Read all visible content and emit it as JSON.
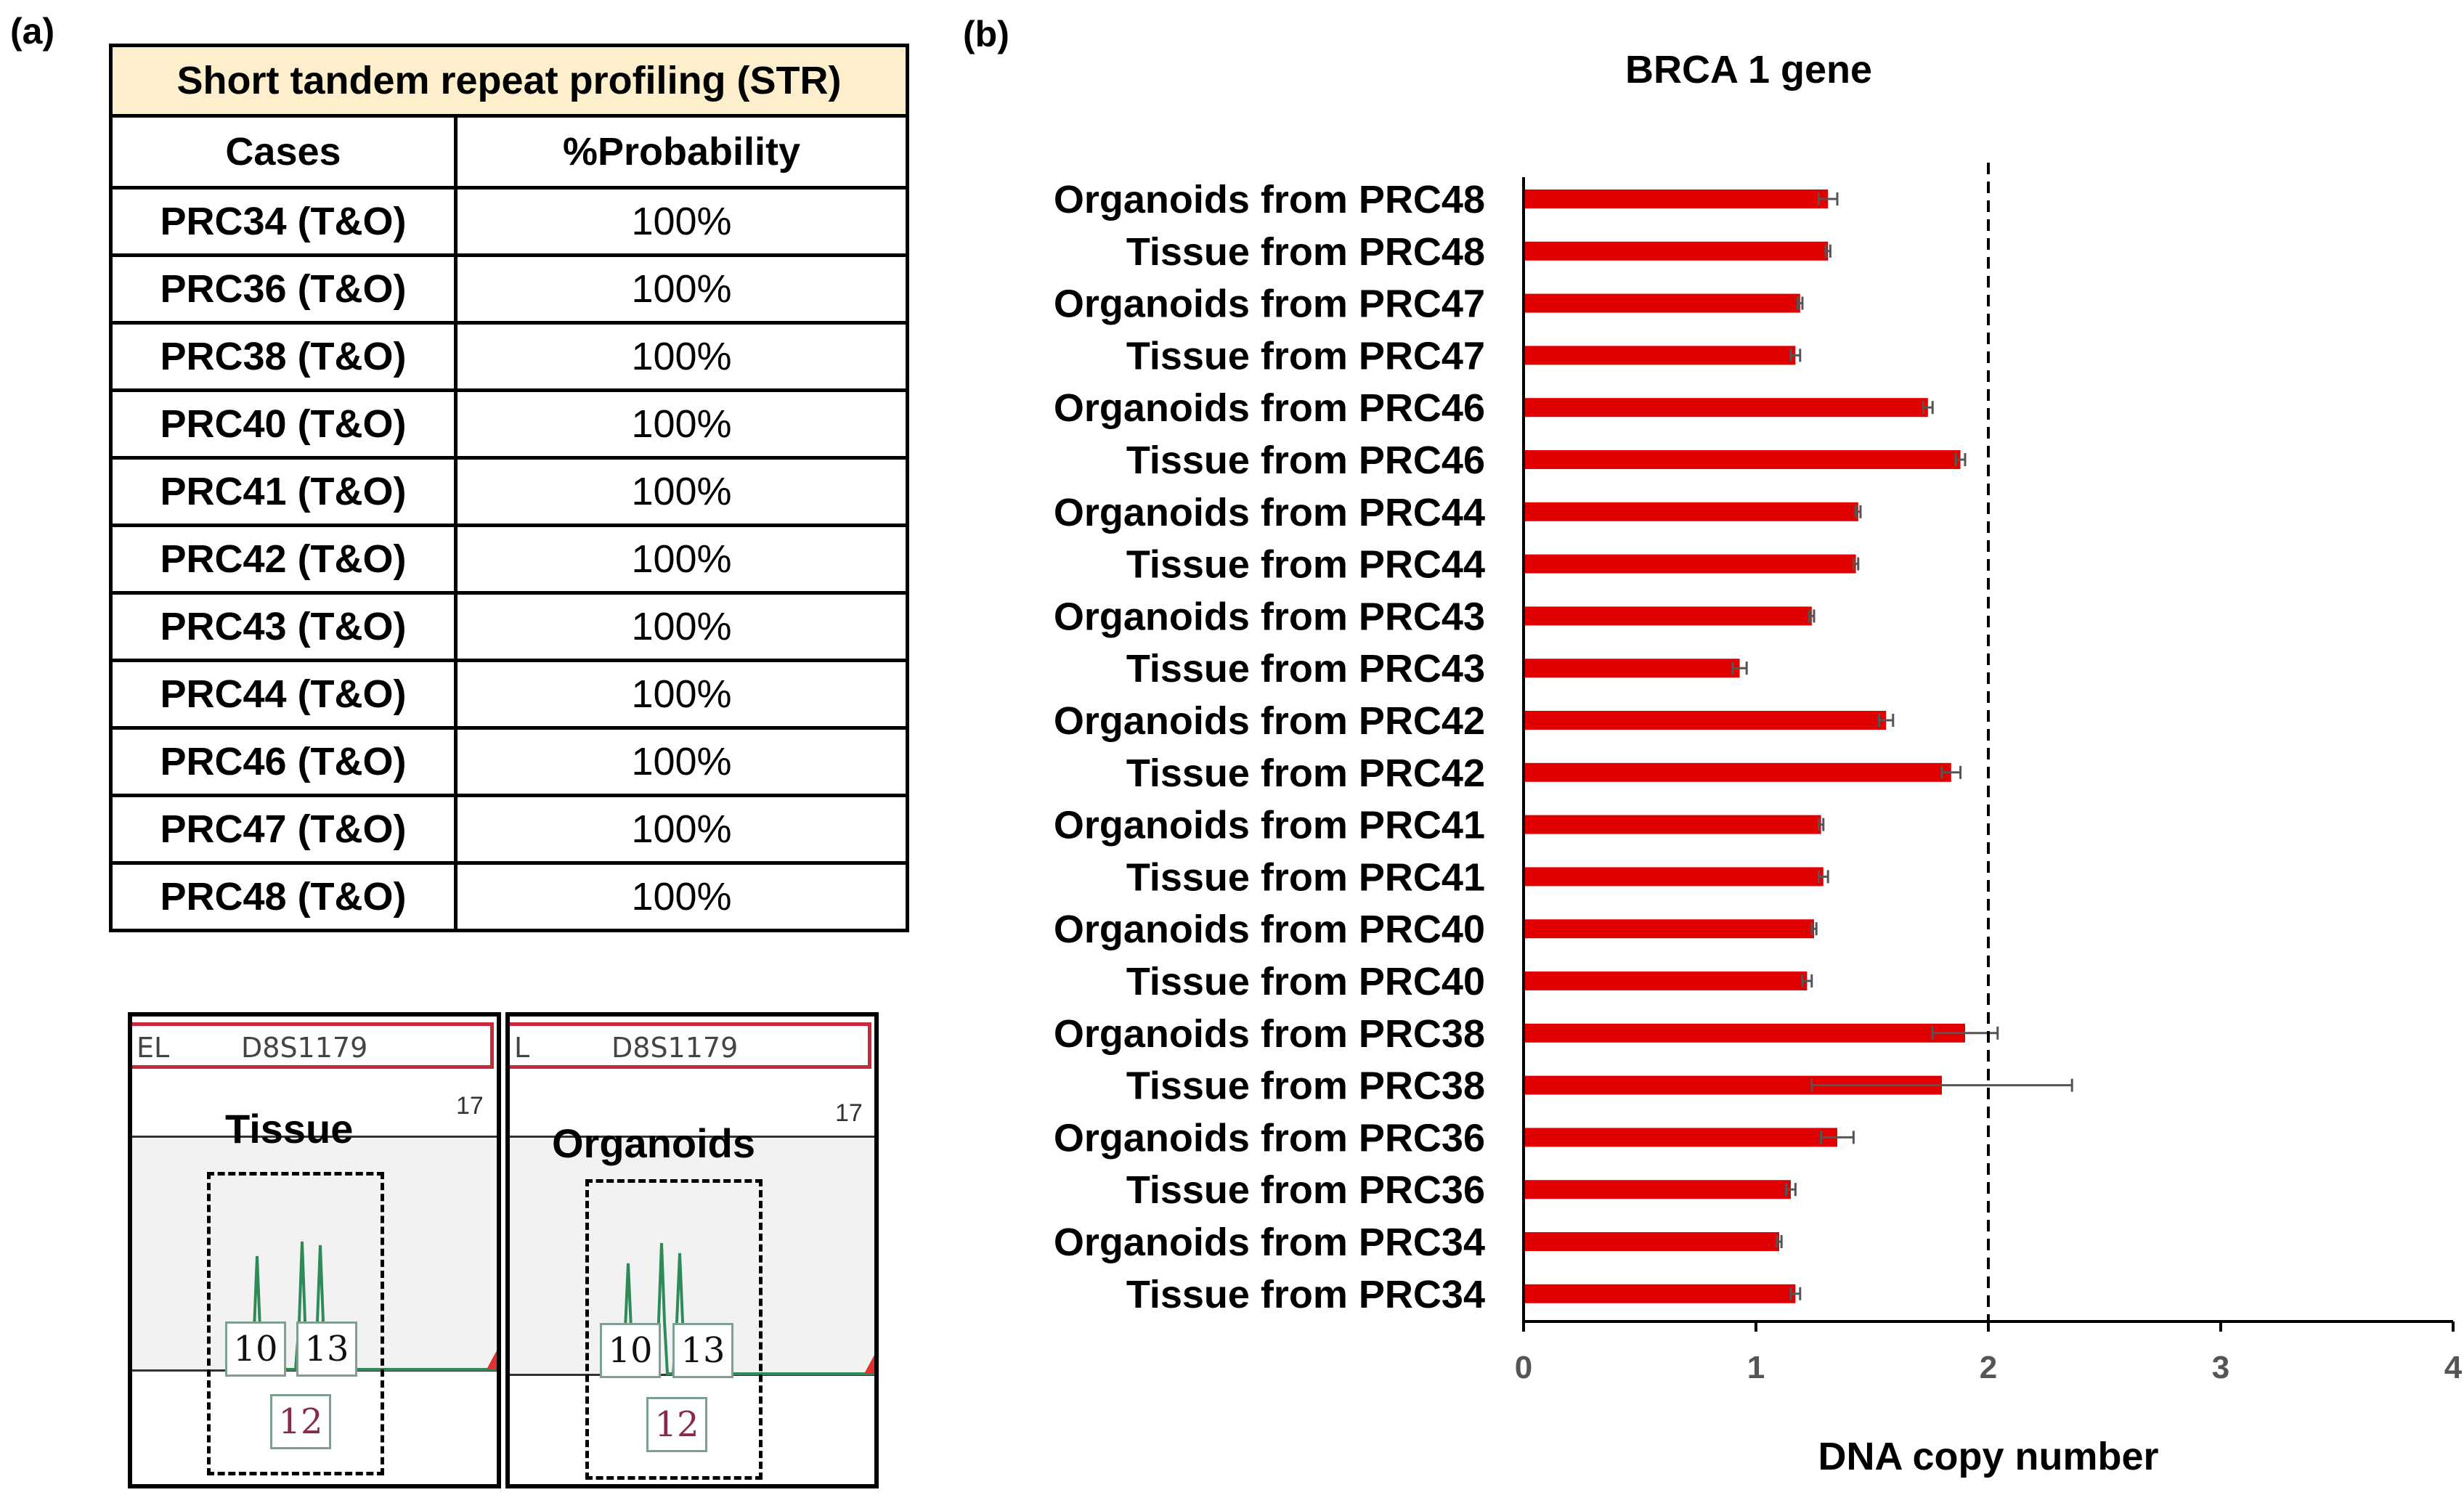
{
  "panel_a": {
    "label": "(a)",
    "table": {
      "title": "Short tandem repeat profiling (STR)",
      "headers": [
        "Cases",
        "%Probability"
      ],
      "rows": [
        [
          "PRC34 (T&O)",
          "100%"
        ],
        [
          "PRC36 (T&O)",
          "100%"
        ],
        [
          "PRC38 (T&O)",
          "100%"
        ],
        [
          "PRC40 (T&O)",
          "100%"
        ],
        [
          "PRC41 (T&O)",
          "100%"
        ],
        [
          "PRC42 (T&O)",
          "100%"
        ],
        [
          "PRC43 (T&O)",
          "100%"
        ],
        [
          "PRC44 (T&O)",
          "100%"
        ],
        [
          "PRC46 (T&O)",
          "100%"
        ],
        [
          "PRC47 (T&O)",
          "100%"
        ],
        [
          "PRC48 (T&O)",
          "100%"
        ]
      ]
    },
    "electropherograms": [
      {
        "title": "Tissue",
        "marker_prefix": "EL",
        "marker": "D8S1179",
        "peak_label": "17",
        "alleles": [
          "10",
          "13",
          "12"
        ]
      },
      {
        "title": "Organoids",
        "marker_prefix": "L",
        "marker": "D8S1179",
        "peak_label": "17",
        "alleles": [
          "10",
          "13",
          "12"
        ]
      }
    ]
  },
  "panel_b": {
    "label": "(b)"
  },
  "colors": {
    "bar": "#e00000",
    "title_fill": "#fdefcb"
  },
  "chart_data": {
    "type": "bar",
    "orientation": "horizontal",
    "title": "BRCA 1 gene",
    "xlabel": "DNA copy number",
    "ylabel": "",
    "xlim": [
      0,
      4
    ],
    "xticks": [
      "0",
      "1",
      "2",
      "3",
      "4"
    ],
    "reference_line": 2,
    "grid": false,
    "categories": [
      "Organoids from PRC48",
      "Tissue from PRC48",
      "Organoids from PRC47",
      "Tissue from PRC47",
      "Organoids from PRC46",
      "Tissue from PRC46",
      "Organoids from PRC44",
      "Tissue from PRC44",
      "Organoids from PRC43",
      "Tissue from PRC43",
      "Organoids from PRC42",
      "Tissue from PRC42",
      "Organoids from PRC41",
      "Tissue from PRC41",
      "Organoids from PRC40",
      "Tissue from PRC40",
      "Organoids from PRC38",
      "Tissue from PRC38",
      "Organoids from PRC36",
      "Tissue from PRC36",
      "Organoids from PRC34",
      "Tissue from PRC34"
    ],
    "values": [
      1.31,
      1.31,
      1.19,
      1.17,
      1.74,
      1.88,
      1.44,
      1.43,
      1.24,
      0.93,
      1.56,
      1.84,
      1.28,
      1.29,
      1.25,
      1.22,
      1.9,
      1.8,
      1.35,
      1.15,
      1.1,
      1.17
    ],
    "errors": [
      0.04,
      0.01,
      0.01,
      0.02,
      0.02,
      0.02,
      0.01,
      0.01,
      0.01,
      0.03,
      0.03,
      0.04,
      0.01,
      0.02,
      0.01,
      0.02,
      0.14,
      0.56,
      0.07,
      0.02,
      0.01,
      0.02
    ]
  }
}
